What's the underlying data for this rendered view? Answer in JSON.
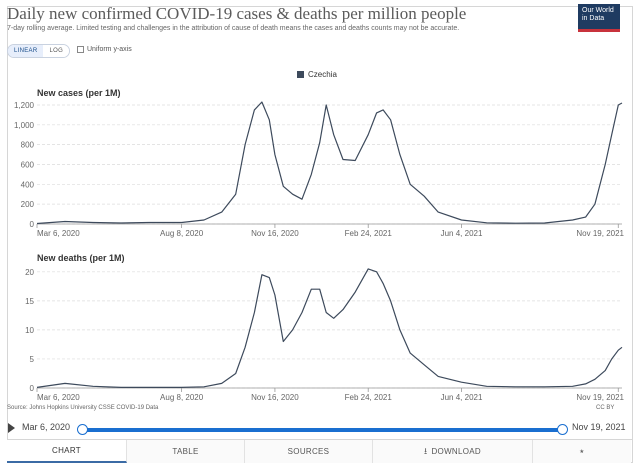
{
  "header": {
    "title": "Daily new confirmed COVID-19 cases & deaths per million people",
    "subtitle": "7-day rolling average. Limited testing and challenges in the attribution of cause of death means the cases and deaths counts may not be accurate.",
    "logo_line1": "Our World",
    "logo_line2": "in Data"
  },
  "controls": {
    "linear_label": "LINEAR",
    "log_label": "LOG",
    "uniform_label": "Uniform y-axis"
  },
  "legend": {
    "country": "Czechia"
  },
  "colors": {
    "series": "#3d4a5c",
    "accent": "#1a6fd0",
    "logo_bg": "#1f3b61",
    "logo_stripe": "#c8323c"
  },
  "chart_data": [
    {
      "type": "line",
      "title": "New cases (per 1M)",
      "x_tick_labels": [
        "Mar 6, 2020",
        "Aug 8, 2020",
        "Nov 16, 2020",
        "Feb 24, 2021",
        "Jun 4, 2021",
        "Nov 19, 2021"
      ],
      "y_ticks": [
        0,
        200,
        400,
        600,
        800,
        1000,
        1200
      ],
      "y_tick_labels": [
        "0",
        "200",
        "400",
        "600",
        "800",
        "1,000",
        "1,200"
      ],
      "ylim": [
        0,
        1240
      ],
      "grid": true,
      "series": [
        {
          "name": "Czechia",
          "x": [
            "2020-03-06",
            "2020-04-05",
            "2020-05-05",
            "2020-06-04",
            "2020-07-04",
            "2020-08-08",
            "2020-09-01",
            "2020-09-20",
            "2020-10-05",
            "2020-10-15",
            "2020-10-25",
            "2020-11-02",
            "2020-11-10",
            "2020-11-16",
            "2020-11-25",
            "2020-12-05",
            "2020-12-15",
            "2020-12-25",
            "2021-01-03",
            "2021-01-10",
            "2021-01-18",
            "2021-01-28",
            "2021-02-10",
            "2021-02-24",
            "2021-03-05",
            "2021-03-12",
            "2021-03-20",
            "2021-03-30",
            "2021-04-10",
            "2021-04-25",
            "2021-05-10",
            "2021-06-04",
            "2021-07-01",
            "2021-08-01",
            "2021-09-01",
            "2021-10-01",
            "2021-10-15",
            "2021-10-25",
            "2021-11-05",
            "2021-11-12",
            "2021-11-19",
            "2021-11-23"
          ],
          "y": [
            5,
            25,
            15,
            10,
            15,
            15,
            40,
            120,
            300,
            800,
            1150,
            1230,
            1050,
            700,
            380,
            300,
            250,
            500,
            820,
            1200,
            900,
            650,
            640,
            900,
            1120,
            1150,
            1050,
            700,
            400,
            280,
            120,
            40,
            12,
            8,
            10,
            40,
            70,
            200,
            600,
            900,
            1200,
            1220
          ]
        }
      ]
    },
    {
      "type": "line",
      "title": "New deaths (per 1M)",
      "x_tick_labels": [
        "Mar 6, 2020",
        "Aug 8, 2020",
        "Nov 16, 2020",
        "Feb 24, 2021",
        "Jun 4, 2021",
        "Nov 19, 2021"
      ],
      "y_ticks": [
        0,
        5,
        10,
        15,
        20
      ],
      "y_tick_labels": [
        "0",
        "5",
        "10",
        "15",
        "20"
      ],
      "ylim": [
        0,
        21
      ],
      "grid": true,
      "series": [
        {
          "name": "Czechia",
          "x": [
            "2020-03-06",
            "2020-04-05",
            "2020-05-05",
            "2020-06-04",
            "2020-07-04",
            "2020-08-08",
            "2020-09-01",
            "2020-09-20",
            "2020-10-05",
            "2020-10-15",
            "2020-10-25",
            "2020-11-02",
            "2020-11-10",
            "2020-11-16",
            "2020-11-25",
            "2020-12-05",
            "2020-12-15",
            "2020-12-25",
            "2021-01-03",
            "2021-01-10",
            "2021-01-18",
            "2021-01-28",
            "2021-02-10",
            "2021-02-24",
            "2021-03-05",
            "2021-03-12",
            "2021-03-20",
            "2021-03-30",
            "2021-04-10",
            "2021-04-25",
            "2021-05-10",
            "2021-06-04",
            "2021-07-01",
            "2021-08-01",
            "2021-09-01",
            "2021-10-01",
            "2021-10-15",
            "2021-10-25",
            "2021-11-05",
            "2021-11-12",
            "2021-11-19",
            "2021-11-23"
          ],
          "y": [
            0.1,
            0.8,
            0.3,
            0.1,
            0.1,
            0.1,
            0.2,
            0.8,
            2.5,
            7,
            13,
            19.5,
            19,
            16,
            8,
            10,
            13,
            17,
            17,
            13,
            12,
            13.5,
            16.5,
            20.5,
            20,
            18,
            15,
            10,
            6,
            4,
            2,
            1,
            0.3,
            0.2,
            0.2,
            0.3,
            0.7,
            1.5,
            3,
            5,
            6.5,
            7
          ]
        }
      ]
    }
  ],
  "footer": {
    "source": "Source: Johns Hopkins University CSSE COVID-19 Data",
    "license": "CC BY"
  },
  "timeline": {
    "start": "Mar 6, 2020",
    "end": "Nov 19, 2021"
  },
  "tabs": [
    {
      "label": "CHART",
      "icon": ""
    },
    {
      "label": "TABLE",
      "icon": ""
    },
    {
      "label": "SOURCES",
      "icon": ""
    },
    {
      "label": "DOWNLOAD",
      "icon": "download-icon"
    },
    {
      "label": "",
      "icon": "share-icon"
    }
  ]
}
